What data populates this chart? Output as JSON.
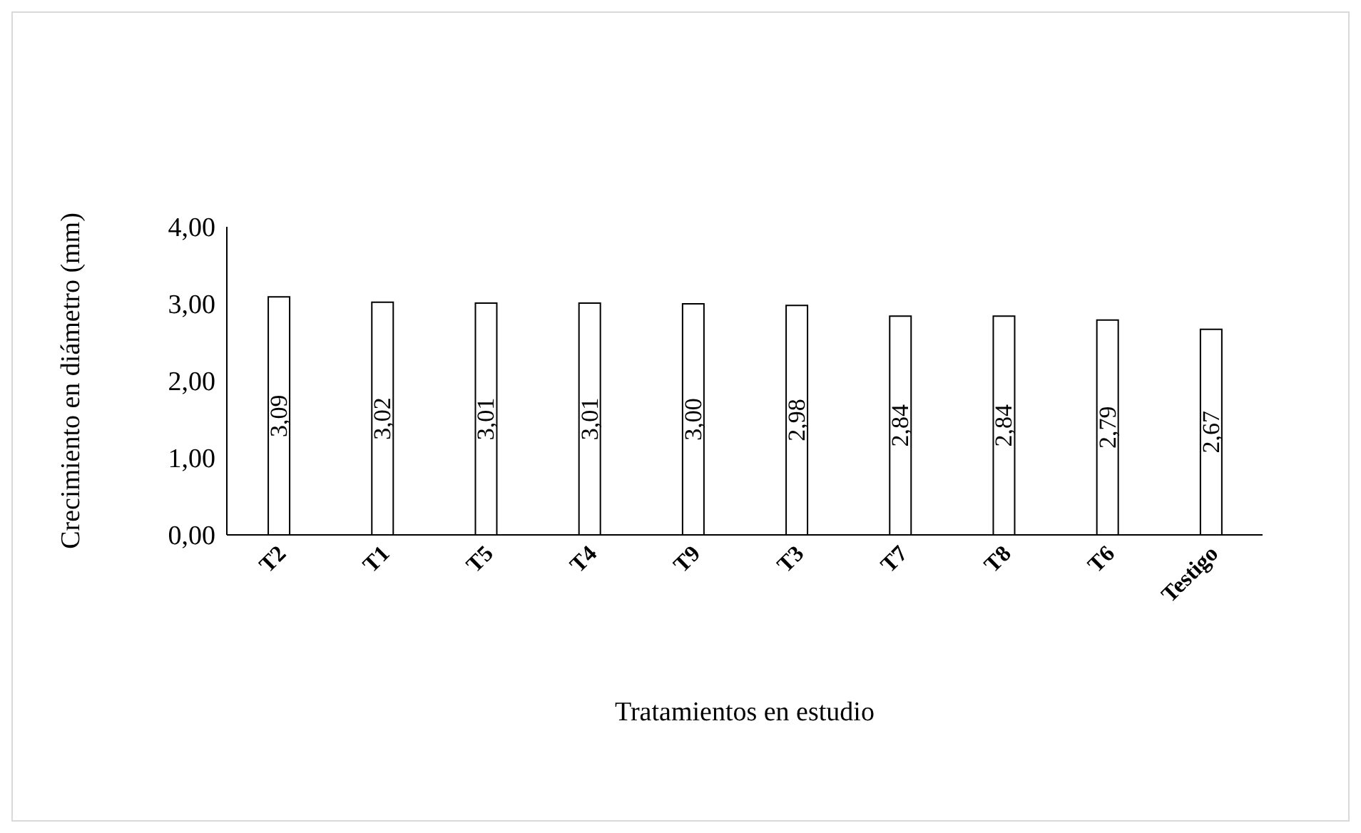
{
  "chart_data": {
    "type": "bar",
    "xlabel": "Tratamientos en estudio",
    "ylabel": "Crecimiento en diámetro (mm)",
    "categories": [
      "T2",
      "T1",
      "T5",
      "T4",
      "T9",
      "T3",
      "T7",
      "T8",
      "T6",
      "Testigo"
    ],
    "values": [
      3.09,
      3.02,
      3.01,
      3.01,
      3.0,
      2.98,
      2.84,
      2.84,
      2.79,
      2.67
    ],
    "value_labels": [
      "3,09",
      "3,02",
      "3,01",
      "3,01",
      "3,00",
      "2,98",
      "2,84",
      "2,84",
      "2,79",
      "2,67"
    ],
    "color": "#ffffff",
    "ylim": [
      0,
      4
    ],
    "yticks": [
      {
        "value": 0,
        "label": "0,00"
      },
      {
        "value": 1,
        "label": "1,00"
      },
      {
        "value": 2,
        "label": "2,00"
      },
      {
        "value": 3,
        "label": "3,00"
      },
      {
        "value": 4,
        "label": "4,00"
      }
    ],
    "grid": false
  }
}
